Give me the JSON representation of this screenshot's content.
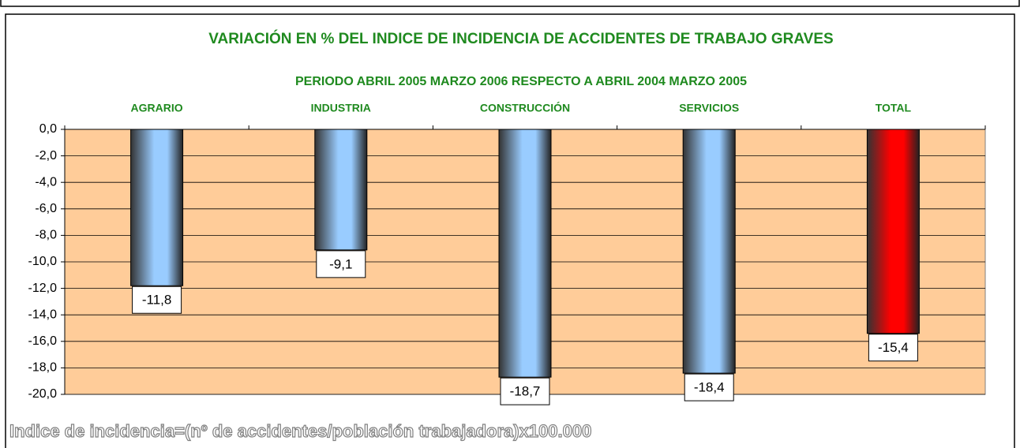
{
  "chart_data": {
    "type": "bar",
    "title": "VARIACIÓN EN % DEL INDICE DE INCIDENCIA  DE ACCIDENTES DE TRABAJO GRAVES",
    "subtitle": "PERIODO ABRIL 2005 MARZO 2006  RESPECTO A ABRIL 2004 MARZO 2005",
    "categories": [
      "AGRARIO",
      "INDUSTRIA",
      "CONSTRUCCIÓN",
      "SERVICIOS",
      "TOTAL"
    ],
    "values": [
      -11.8,
      -9.1,
      -18.7,
      -18.4,
      -15.4
    ],
    "value_labels": [
      "-11,8",
      "-9,1",
      "-18,7",
      "-18,4",
      "-15,4"
    ],
    "colors": [
      "#99ccff",
      "#99ccff",
      "#99ccff",
      "#99ccff",
      "#ff0000"
    ],
    "ylim": [
      -20,
      0
    ],
    "yticks": [
      {
        "value": 0,
        "label": "0,0"
      },
      {
        "value": -2,
        "label": "-2,0"
      },
      {
        "value": -4,
        "label": "-4,0"
      },
      {
        "value": -6,
        "label": "-6,0"
      },
      {
        "value": -8,
        "label": "-8,0"
      },
      {
        "value": -10,
        "label": "-10,0"
      },
      {
        "value": -12,
        "label": "-12,0"
      },
      {
        "value": -14,
        "label": "-14,0"
      },
      {
        "value": -16,
        "label": "-16,0"
      },
      {
        "value": -18,
        "label": "-18,0"
      },
      {
        "value": -20,
        "label": "-20,0"
      }
    ],
    "grid": true,
    "plot_background": "#ffcc99",
    "footnote": "Indice de incidencia=(nº de accidentes/población trabajadora)x100.000"
  }
}
